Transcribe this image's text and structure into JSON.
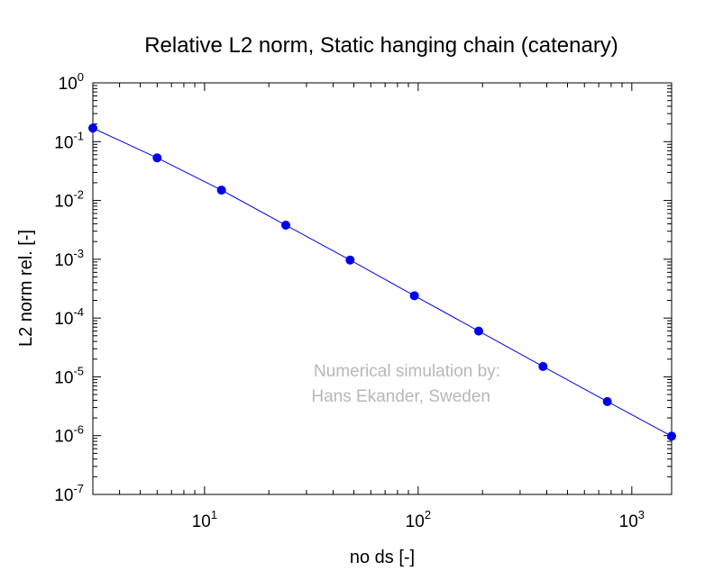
{
  "chart_data": {
    "type": "line",
    "title": "Relative L2 norm, Static hanging chain (catenary)",
    "xlabel": "no ds [-]",
    "ylabel": "L2 norm rel. [-]",
    "xscale": "log",
    "yscale": "log",
    "xlim": [
      3,
      1536
    ],
    "ylim": [
      1e-07,
      1
    ],
    "x_ticks": [
      {
        "value": 10,
        "base": "10",
        "exp": "1"
      },
      {
        "value": 100,
        "base": "10",
        "exp": "2"
      },
      {
        "value": 1000,
        "base": "10",
        "exp": "3"
      }
    ],
    "y_ticks": [
      {
        "value": 1,
        "base": "10",
        "exp": "0"
      },
      {
        "value": 0.1,
        "base": "10",
        "exp": "-1"
      },
      {
        "value": 0.01,
        "base": "10",
        "exp": "-2"
      },
      {
        "value": 0.001,
        "base": "10",
        "exp": "-3"
      },
      {
        "value": 0.0001,
        "base": "10",
        "exp": "-4"
      },
      {
        "value": 1e-05,
        "base": "10",
        "exp": "-5"
      },
      {
        "value": 1e-06,
        "base": "10",
        "exp": "-6"
      },
      {
        "value": 1e-07,
        "base": "10",
        "exp": "-7"
      }
    ],
    "series": [
      {
        "color": "#0000ee",
        "marker": "circle",
        "x": [
          3,
          6,
          12,
          24,
          48,
          96,
          192,
          384,
          768,
          1536
        ],
        "y": [
          0.17,
          0.053,
          0.015,
          0.0038,
          0.00097,
          0.00024,
          6e-05,
          1.5e-05,
          3.8e-06,
          9.8e-07
        ]
      }
    ],
    "annotations": [
      "Numerical simulation by:",
      "Hans Ekander, Sweden"
    ],
    "grid": false,
    "legend": "none"
  }
}
